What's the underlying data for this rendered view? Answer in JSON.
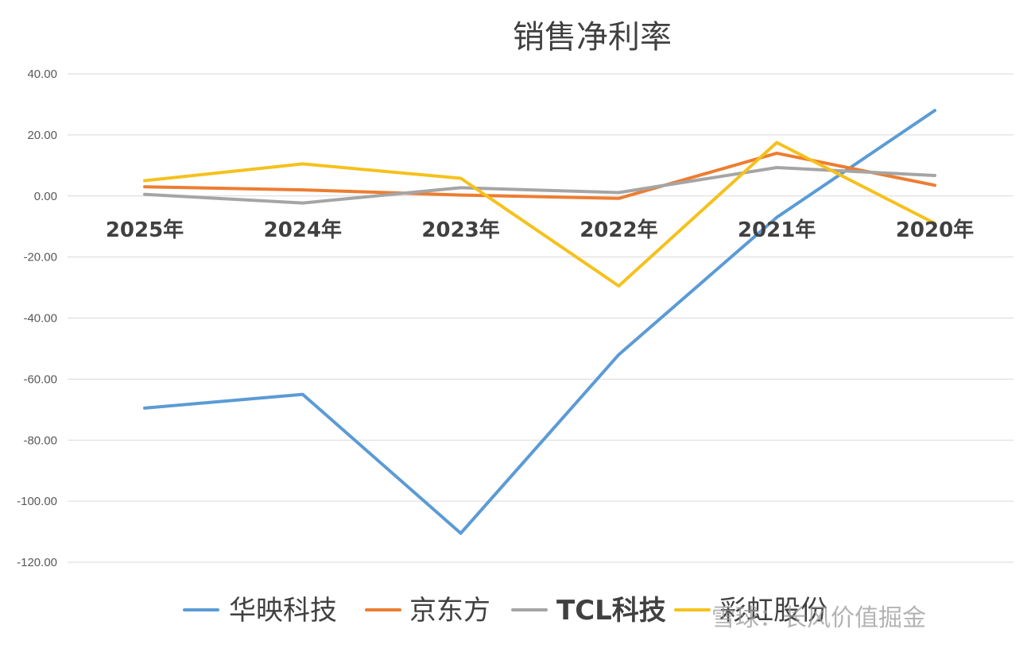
{
  "chart_data": {
    "type": "line",
    "title": "销售净利率",
    "xlabel": "",
    "ylabel": "",
    "categories": [
      "2025年",
      "2024年",
      "2023年",
      "2022年",
      "2021年",
      "2020年"
    ],
    "ylim": [
      -120,
      40
    ],
    "yticks": [
      40,
      20,
      0,
      -20,
      -40,
      -60,
      -80,
      -100,
      -120
    ],
    "ytick_labels": [
      "40.00",
      "20.00",
      "0.00",
      "-20.00",
      "-40.00",
      "-60.00",
      "-80.00",
      "-100.00",
      "-120.00"
    ],
    "grid": true,
    "legend_position": "bottom",
    "series": [
      {
        "name": "华映科技",
        "color": "#5b9bd5",
        "values": [
          -69.5,
          -65.0,
          -110.5,
          -52.0,
          -7.0,
          28.0
        ]
      },
      {
        "name": "京东方",
        "color": "#ed7d31",
        "values": [
          3.0,
          2.0,
          0.3,
          -0.8,
          14.0,
          3.5
        ]
      },
      {
        "name": "TCL科技",
        "color": "#a5a5a5",
        "values": [
          0.5,
          -2.3,
          2.7,
          1.1,
          9.3,
          6.7
        ]
      },
      {
        "name": "彩虹股份",
        "color": "#f5c11c",
        "values": [
          5.0,
          10.5,
          5.8,
          -29.5,
          17.5,
          -9.0
        ]
      }
    ]
  },
  "watermark": "雪球：长风价值掘金"
}
